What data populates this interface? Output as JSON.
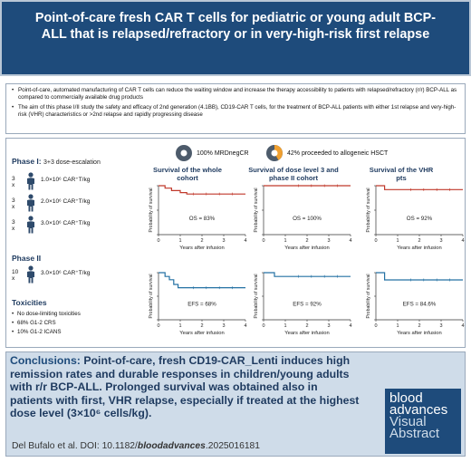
{
  "title": "Point-of-care fresh CAR T cells for pediatric or young adult BCP-ALL that is relapsed/refractory or in very-high-risk first relapse",
  "intro": [
    "Point-of-care, automated manufacturing of CAR T cells can reduce the waiting window and increase the therapy accessibility to patients with relapsed/refractory (r/r) BCP-ALL as compared to commercially available drug products",
    "The aim of this phase I/II study the safety and efficacy of 2nd generation (4.1BB), CD19-CAR T cells, for the treatment of BCP-ALL patients with either 1st relapse and very-high-risk (VHR) characteristics or >2nd relapse and rapidly progressing disease"
  ],
  "phase1": {
    "label": "Phase I:",
    "sub": "3+3 dose-escalation",
    "doses": [
      {
        "n": "3 x",
        "dose_html": "1.0×10⁶ CAR⁺T/kg"
      },
      {
        "n": "3 x",
        "dose_html": "2.0×10⁶ CAR⁺T/kg"
      },
      {
        "n": "3 x",
        "dose_html": "3.0×10⁶ CAR⁺T/kg"
      }
    ]
  },
  "phase2": {
    "label": "Phase II",
    "doses": [
      {
        "n": "10 x",
        "dose_html": "3.0×10⁶ CAR⁺T/kg"
      }
    ]
  },
  "toxicities": {
    "label": "Toxicities",
    "items": [
      "No dose-limiting toxicities",
      "68% G1-2 CRS",
      "10% G1-2 ICANS"
    ]
  },
  "donuts": [
    {
      "label": "100% MRDnegCR",
      "fraction": 1.0,
      "color": "#4d5b6b"
    },
    {
      "label": "42% proceeded to allogeneic HSCT",
      "fraction": 0.42,
      "color": "#f0a030"
    }
  ],
  "chart_titles": [
    "Survival of the whole cohort",
    "Survival of dose level 3 and phase II cohort",
    "Survival of the VHR pts"
  ],
  "ylabel": "Probability of survival",
  "xlabel": "Years after infusion",
  "conclusion": {
    "label": "Conclusions:",
    "text": "Point-of-care, fresh CD19-CAR_Lenti induces high remission rates and durable responses in children/young adults with r/r BCP-ALL. Prolonged survival was obtained also in patients with first, VHR relapse, especially if treated at the highest dose level (3×10⁶ cells/kg)."
  },
  "citation": {
    "prefix": "Del Bufalo et al. DOI: 10.1182/",
    "journal": "bloodadvances",
    "suffix": ".2025016181"
  },
  "logo": {
    "l1": "blood",
    "l2": "advances",
    "l3": "Visual",
    "l4": "Abstract"
  },
  "chart_data": [
    {
      "type": "line",
      "title": "Survival of the whole cohort",
      "annotation": "OS = 83%",
      "xlabel": "Years after infusion",
      "ylabel": "Probability of survival",
      "xlim": [
        0,
        4
      ],
      "ylim": [
        0,
        1
      ],
      "color": "#c0392b",
      "x": [
        0,
        0.3,
        0.3,
        0.6,
        0.6,
        1.0,
        1.0,
        1.3,
        1.3,
        4.0
      ],
      "values": [
        1.0,
        1.0,
        0.95,
        0.95,
        0.9,
        0.9,
        0.86,
        0.86,
        0.83,
        0.83
      ]
    },
    {
      "type": "line",
      "title": "Survival of dose level 3 and phase II cohort",
      "annotation": "OS = 100%",
      "xlabel": "Years after infusion",
      "ylabel": "Probability of survival",
      "xlim": [
        0,
        4
      ],
      "ylim": [
        0,
        1
      ],
      "color": "#c0392b",
      "x": [
        0,
        4.0
      ],
      "values": [
        1.0,
        1.0
      ]
    },
    {
      "type": "line",
      "title": "Survival of the VHR pts",
      "annotation": "OS = 92%",
      "xlabel": "Years after infusion",
      "ylabel": "Probability of survival",
      "xlim": [
        0,
        4
      ],
      "ylim": [
        0,
        1
      ],
      "color": "#c0392b",
      "x": [
        0,
        0.4,
        0.4,
        4.0
      ],
      "values": [
        1.0,
        1.0,
        0.92,
        0.92
      ]
    },
    {
      "type": "line",
      "title": "",
      "annotation": "EFS = 68%",
      "xlabel": "Years after infusion",
      "ylabel": "Probability of survival",
      "xlim": [
        0,
        4
      ],
      "ylim": [
        0,
        1
      ],
      "color": "#2471a3",
      "x": [
        0,
        0.3,
        0.3,
        0.5,
        0.5,
        0.7,
        0.7,
        0.9,
        0.9,
        4.0
      ],
      "values": [
        1.0,
        1.0,
        0.92,
        0.92,
        0.85,
        0.85,
        0.75,
        0.75,
        0.68,
        0.68
      ]
    },
    {
      "type": "line",
      "title": "",
      "annotation": "EFS = 92%",
      "xlabel": "Years after infusion",
      "ylabel": "Probability of survival",
      "xlim": [
        0,
        4
      ],
      "ylim": [
        0,
        1
      ],
      "color": "#2471a3",
      "x": [
        0,
        0.5,
        0.5,
        4.0
      ],
      "values": [
        1.0,
        1.0,
        0.92,
        0.92
      ]
    },
    {
      "type": "line",
      "title": "",
      "annotation": "EFS = 84.6%",
      "xlabel": "Years after infusion",
      "ylabel": "Probability of survival",
      "xlim": [
        0,
        4
      ],
      "ylim": [
        0,
        1
      ],
      "color": "#2471a3",
      "x": [
        0,
        0.4,
        0.4,
        4.0
      ],
      "values": [
        1.0,
        1.0,
        0.846,
        0.846
      ]
    }
  ]
}
